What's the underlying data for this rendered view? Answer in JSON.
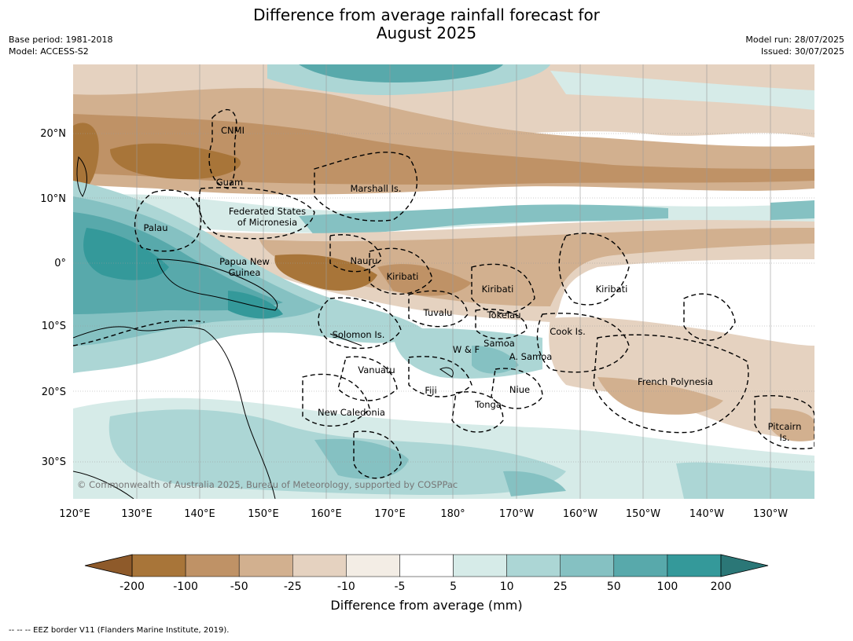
{
  "header": {
    "title_line1": "Difference from average rainfall forecast for",
    "title_line2": "August 2025",
    "base_period": "Base period: 1981-2018",
    "model": "Model: ACCESS-S2",
    "model_run": "Model run: 28/07/2025",
    "issued": "Issued: 30/07/2025"
  },
  "map": {
    "lon_labels": [
      "120°E",
      "130°E",
      "140°E",
      "150°E",
      "160°E",
      "170°E",
      "180°",
      "170°W",
      "160°W",
      "150°W",
      "140°W",
      "130°W"
    ],
    "lat_labels": [
      "20°N",
      "10°N",
      "0°",
      "10°S",
      "20°S",
      "30°S"
    ],
    "copyright": "© Commonwealth of Australia 2025, Bureau of Meteorology, supported by COSPPac",
    "places": [
      "CNMI",
      "Guam",
      "Marshall Is.",
      "Federated States",
      "of Micronesia",
      "Palau",
      "Papua New",
      "Guinea",
      "Nauru",
      "Kiribati",
      "Kiribati",
      "Kiribati",
      "Tuvalu",
      "Tokelau",
      "Cook Is.",
      "Solomon Is.",
      "Samoa",
      "W & F",
      "A. Samoa",
      "Vanuatu",
      "Fiji",
      "Niue",
      "Tonga",
      "French Polynesia",
      "New Caledonia",
      "Pitcairn",
      "Is."
    ]
  },
  "colorbar": {
    "label": "Difference from average (mm)",
    "ticks": [
      "-200",
      "-100",
      "-50",
      "-25",
      "-10",
      "-5",
      "5",
      "10",
      "25",
      "50",
      "100",
      "200"
    ],
    "colors": [
      "#a87539",
      "#bf9266",
      "#d2b08f",
      "#e5d2c0",
      "#f3ede5",
      "#ffffff",
      "#d6ebe8",
      "#acd6d5",
      "#85c1c2",
      "#58a9ab",
      "#34999a"
    ],
    "low_extend": "#8e5a2a",
    "high_extend": "#2b7777"
  },
  "footer": {
    "legend_text": "-- -- -- EEZ border V11 (Flanders Marine Institute, 2019)."
  }
}
